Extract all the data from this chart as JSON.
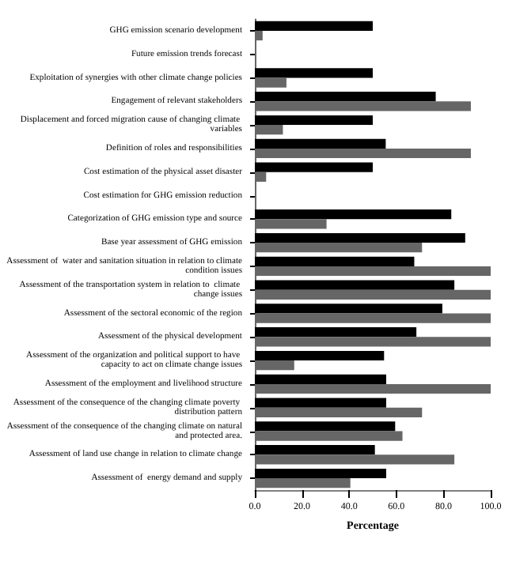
{
  "chart_data": {
    "type": "bar",
    "orientation": "horizontal",
    "xlabel": "Percentage",
    "categories": [
      "GHG emission scenario development",
      "Future emission trends forecast",
      "Exploitation of synergies with other climate change policies",
      "Engagement of relevant stakeholders",
      "Displacement and forced migration cause of changing climate variables",
      "Definition of roles and responsibilities",
      "Cost estimation of the physical asset disaster",
      "Cost estimation for GHG emission reduction",
      "Categorization of GHG emission type and source",
      "Base year assessment of GHG emission",
      "Assessment of  water and sanitation situation in relation to climate condition issues",
      "Assessment of the transportation system in relation to  climate change issues",
      "Assessment of the sectoral economic of the region",
      "Assessment of the physical development",
      "Assessment of the organization and political support to have capacity to act on climate change issues",
      "Assessment of the employment and livelihood structure",
      "Assessment of the consequence of the changing climate poverty distribution pattern",
      "Assessment of the consequence of the changing climate on natural and protected area.",
      "Assessment of land use change in relation to climate change",
      "Assessment of  energy demand and supply"
    ],
    "series": [
      {
        "color": "#000000",
        "values": [
          50,
          0,
          50,
          76.7,
          50,
          55.5,
          50,
          0,
          83.3,
          89.2,
          67.6,
          84.6,
          79.5,
          68.5,
          54.8,
          55.7,
          55.7,
          59.5,
          50.9,
          55.7
        ]
      },
      {
        "color": "#666666",
        "values": [
          3.3,
          0,
          13.4,
          91.6,
          11.9,
          91.6,
          4.8,
          0,
          30.4,
          70.9,
          100,
          100,
          100,
          100,
          16.7,
          100,
          70.9,
          62.6,
          84.6,
          40.5
        ]
      }
    ],
    "xlim": [
      0,
      100
    ],
    "xticks": [
      {
        "value": 0,
        "label": "0.0"
      },
      {
        "value": 20,
        "label": "20.0"
      },
      {
        "value": 40,
        "label": "40.0"
      },
      {
        "value": 60,
        "label": "60.0"
      },
      {
        "value": 80,
        "label": "80.0"
      },
      {
        "value": 100,
        "label": "100.0"
      }
    ],
    "data_labels": false
  }
}
